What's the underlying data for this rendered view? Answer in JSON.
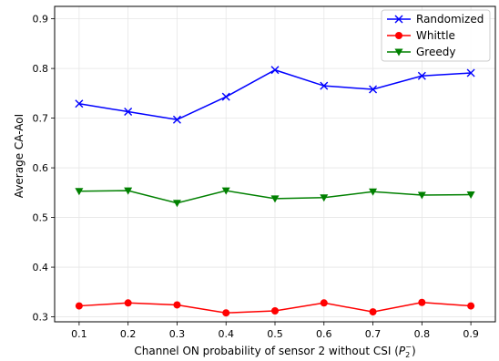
{
  "chart_data": {
    "type": "line",
    "x": [
      0.1,
      0.2,
      0.3,
      0.4,
      0.5,
      0.6,
      0.7,
      0.8,
      0.9
    ],
    "x_ticks": [
      "0.1",
      "0.2",
      "0.3",
      "0.4",
      "0.5",
      "0.6",
      "0.7",
      "0.8",
      "0.9"
    ],
    "y_ticks": [
      "0.3",
      "0.4",
      "0.5",
      "0.6",
      "0.7",
      "0.8",
      "0.9"
    ],
    "xlim": [
      0.05,
      0.95
    ],
    "ylim": [
      0.29,
      0.925
    ],
    "xlabel_main": "Channel ON probability of sensor 2 without CSI (",
    "xlabel_symbol": "P",
    "xlabel_sub": "2",
    "xlabel_sup": "−",
    "xlabel_end": ")",
    "ylabel": "Average CA-AoI",
    "grid": true,
    "legend_position": "top-right",
    "series": [
      {
        "name": "Randomized",
        "color": "#0000ff",
        "marker": "x",
        "values": [
          0.729,
          0.713,
          0.697,
          0.743,
          0.797,
          0.765,
          0.758,
          0.785,
          0.791
        ]
      },
      {
        "name": "Whittle",
        "color": "#ff0000",
        "marker": "circle",
        "values": [
          0.322,
          0.328,
          0.324,
          0.308,
          0.312,
          0.328,
          0.31,
          0.329,
          0.322
        ]
      },
      {
        "name": "Greedy",
        "color": "#008000",
        "marker": "triangle-down",
        "values": [
          0.553,
          0.554,
          0.529,
          0.554,
          0.538,
          0.54,
          0.552,
          0.545,
          0.546
        ]
      }
    ]
  }
}
